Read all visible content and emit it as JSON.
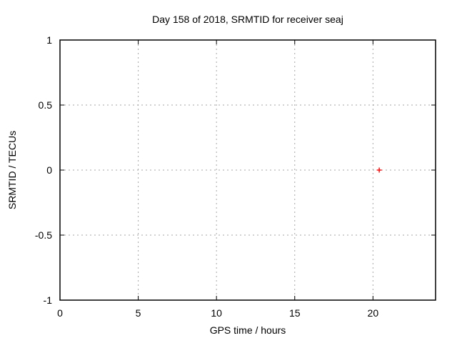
{
  "window": {
    "background": "#ffffff"
  },
  "chart_data": {
    "type": "scatter",
    "title": "Day 158 of 2018, SRMTID for receiver seaj",
    "xlabel": "GPS time / hours",
    "ylabel": "SRMTID / TECUs",
    "xlim": [
      0,
      24
    ],
    "ylim": [
      -1,
      1
    ],
    "xticks": [
      0,
      5,
      10,
      15,
      20
    ],
    "yticks": [
      -1,
      -0.5,
      0,
      0.5,
      1
    ],
    "grid": true,
    "grid_style": "dashed",
    "grid_color": "#a6a6a6",
    "border_color": "#000000",
    "legend": "none",
    "series": [
      {
        "name": "SRMTID",
        "marker": "plus",
        "color": "#ff0000",
        "points": [
          {
            "x": 20.4,
            "y": 0
          }
        ]
      }
    ]
  }
}
